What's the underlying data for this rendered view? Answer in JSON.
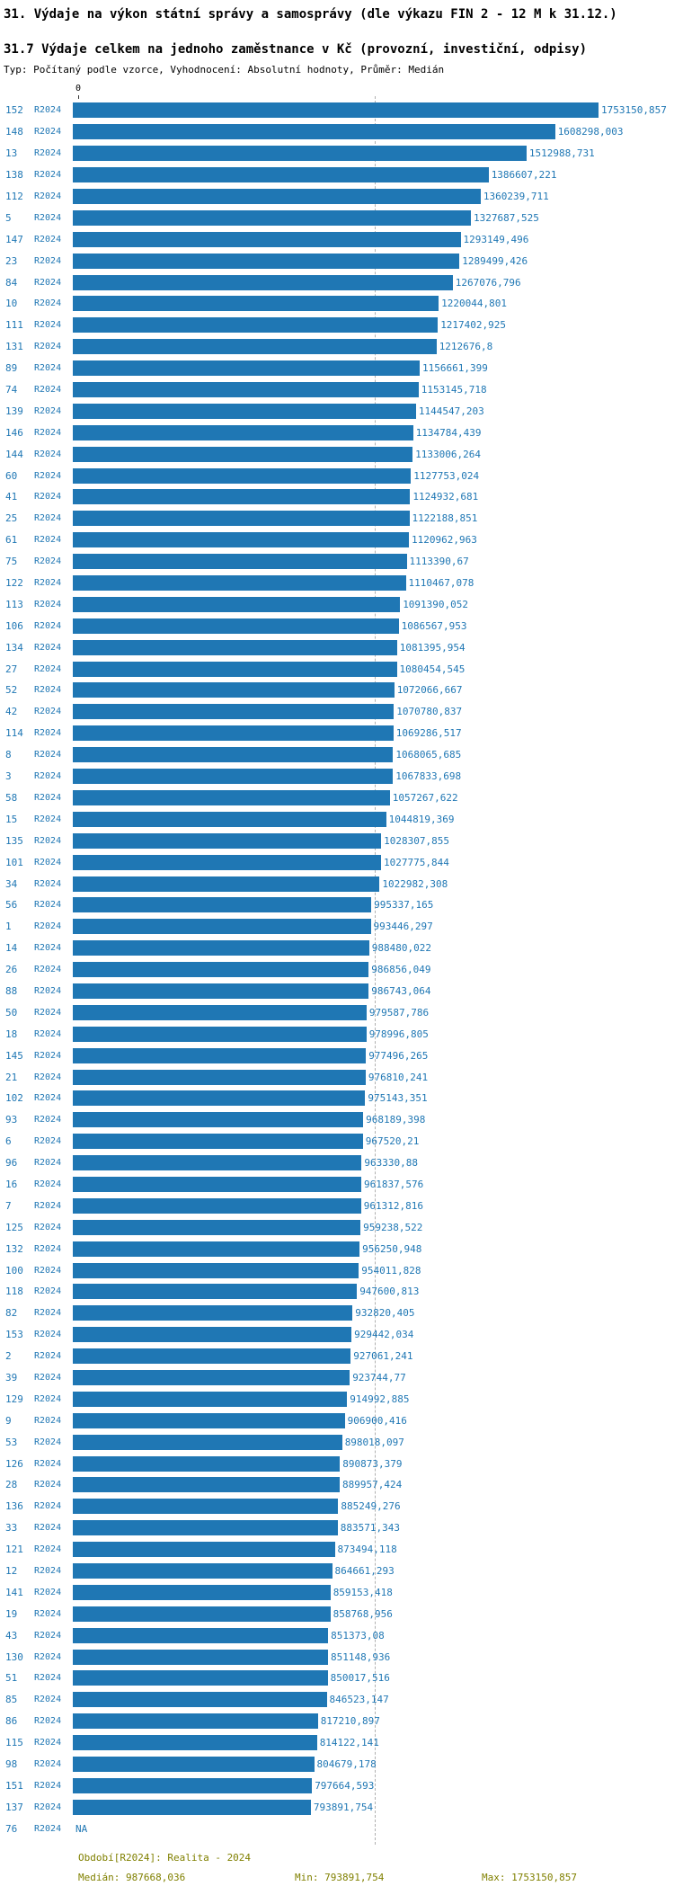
{
  "header": {
    "title1": "31. Výdaje na výkon státní správy a samosprávy (dle výkazu FIN 2 - 12 M k 31.12.)",
    "title2": "31.7 Výdaje celkem na jednoho zaměstnance v Kč (provozní, investiční, odpisy)",
    "meta": "Typ: Počítaný podle vzorce, Vyhodnocení: Absolutní hodnoty, Průměr: Medián"
  },
  "axis": {
    "zero_label": "0"
  },
  "colors": {
    "bar": "#1f77b4",
    "label": "#1f77b4",
    "footer": "#808000",
    "median_line": "#b0b0b0"
  },
  "footer": {
    "period": "Období[R2024]: Realita - 2024",
    "median": "Medián: 987668,036",
    "min": "Min: 793891,754",
    "max": "Max: 1753150,857"
  },
  "chart_data": {
    "type": "bar",
    "orientation": "horizontal",
    "series_name": "R2024",
    "xlim": [
      0,
      1753150.857
    ],
    "median": 987668.036,
    "min": 793891.754,
    "max": 1753150.857,
    "legend": "none",
    "grid": false,
    "rows": [
      {
        "id": "152",
        "period": "R2024",
        "value": 1753150.857,
        "label": "1753150,857"
      },
      {
        "id": "148",
        "period": "R2024",
        "value": 1608298.003,
        "label": "1608298,003"
      },
      {
        "id": "13",
        "period": "R2024",
        "value": 1512988.731,
        "label": "1512988,731"
      },
      {
        "id": "138",
        "period": "R2024",
        "value": 1386607.221,
        "label": "1386607,221"
      },
      {
        "id": "112",
        "period": "R2024",
        "value": 1360239.711,
        "label": "1360239,711"
      },
      {
        "id": "5",
        "period": "R2024",
        "value": 1327687.525,
        "label": "1327687,525"
      },
      {
        "id": "147",
        "period": "R2024",
        "value": 1293149.496,
        "label": "1293149,496"
      },
      {
        "id": "23",
        "period": "R2024",
        "value": 1289499.426,
        "label": "1289499,426"
      },
      {
        "id": "84",
        "period": "R2024",
        "value": 1267076.796,
        "label": "1267076,796"
      },
      {
        "id": "10",
        "period": "R2024",
        "value": 1220044.801,
        "label": "1220044,801"
      },
      {
        "id": "111",
        "period": "R2024",
        "value": 1217402.925,
        "label": "1217402,925"
      },
      {
        "id": "131",
        "period": "R2024",
        "value": 1212676.8,
        "label": "1212676,8"
      },
      {
        "id": "89",
        "period": "R2024",
        "value": 1156661.399,
        "label": "1156661,399"
      },
      {
        "id": "74",
        "period": "R2024",
        "value": 1153145.718,
        "label": "1153145,718"
      },
      {
        "id": "139",
        "period": "R2024",
        "value": 1144547.203,
        "label": "1144547,203"
      },
      {
        "id": "146",
        "period": "R2024",
        "value": 1134784.439,
        "label": "1134784,439"
      },
      {
        "id": "144",
        "period": "R2024",
        "value": 1133006.264,
        "label": "1133006,264"
      },
      {
        "id": "60",
        "period": "R2024",
        "value": 1127753.024,
        "label": "1127753,024"
      },
      {
        "id": "41",
        "period": "R2024",
        "value": 1124932.681,
        "label": "1124932,681"
      },
      {
        "id": "25",
        "period": "R2024",
        "value": 1122188.851,
        "label": "1122188,851"
      },
      {
        "id": "61",
        "period": "R2024",
        "value": 1120962.963,
        "label": "1120962,963"
      },
      {
        "id": "75",
        "period": "R2024",
        "value": 1113390.67,
        "label": "1113390,67"
      },
      {
        "id": "122",
        "period": "R2024",
        "value": 1110467.078,
        "label": "1110467,078"
      },
      {
        "id": "113",
        "period": "R2024",
        "value": 1091390.052,
        "label": "1091390,052"
      },
      {
        "id": "106",
        "period": "R2024",
        "value": 1086567.953,
        "label": "1086567,953"
      },
      {
        "id": "134",
        "period": "R2024",
        "value": 1081395.954,
        "label": "1081395,954"
      },
      {
        "id": "27",
        "period": "R2024",
        "value": 1080454.545,
        "label": "1080454,545"
      },
      {
        "id": "52",
        "period": "R2024",
        "value": 1072066.667,
        "label": "1072066,667"
      },
      {
        "id": "42",
        "period": "R2024",
        "value": 1070780.837,
        "label": "1070780,837"
      },
      {
        "id": "114",
        "period": "R2024",
        "value": 1069286.517,
        "label": "1069286,517"
      },
      {
        "id": "8",
        "period": "R2024",
        "value": 1068065.685,
        "label": "1068065,685"
      },
      {
        "id": "3",
        "period": "R2024",
        "value": 1067833.698,
        "label": "1067833,698"
      },
      {
        "id": "58",
        "period": "R2024",
        "value": 1057267.622,
        "label": "1057267,622"
      },
      {
        "id": "15",
        "period": "R2024",
        "value": 1044819.369,
        "label": "1044819,369"
      },
      {
        "id": "135",
        "period": "R2024",
        "value": 1028307.855,
        "label": "1028307,855"
      },
      {
        "id": "101",
        "period": "R2024",
        "value": 1027775.844,
        "label": "1027775,844"
      },
      {
        "id": "34",
        "period": "R2024",
        "value": 1022982.308,
        "label": "1022982,308"
      },
      {
        "id": "56",
        "period": "R2024",
        "value": 995337.165,
        "label": "995337,165"
      },
      {
        "id": "1",
        "period": "R2024",
        "value": 993446.297,
        "label": "993446,297"
      },
      {
        "id": "14",
        "period": "R2024",
        "value": 988480.022,
        "label": "988480,022"
      },
      {
        "id": "26",
        "period": "R2024",
        "value": 986856.049,
        "label": "986856,049"
      },
      {
        "id": "88",
        "period": "R2024",
        "value": 986743.064,
        "label": "986743,064"
      },
      {
        "id": "50",
        "period": "R2024",
        "value": 979587.786,
        "label": "979587,786"
      },
      {
        "id": "18",
        "period": "R2024",
        "value": 978996.805,
        "label": "978996,805"
      },
      {
        "id": "145",
        "period": "R2024",
        "value": 977496.265,
        "label": "977496,265"
      },
      {
        "id": "21",
        "period": "R2024",
        "value": 976810.241,
        "label": "976810,241"
      },
      {
        "id": "102",
        "period": "R2024",
        "value": 975143.351,
        "label": "975143,351"
      },
      {
        "id": "93",
        "period": "R2024",
        "value": 968189.398,
        "label": "968189,398"
      },
      {
        "id": "6",
        "period": "R2024",
        "value": 967520.21,
        "label": "967520,21"
      },
      {
        "id": "96",
        "period": "R2024",
        "value": 963330.88,
        "label": "963330,88"
      },
      {
        "id": "16",
        "period": "R2024",
        "value": 961837.576,
        "label": "961837,576"
      },
      {
        "id": "7",
        "period": "R2024",
        "value": 961312.816,
        "label": "961312,816"
      },
      {
        "id": "125",
        "period": "R2024",
        "value": 959238.522,
        "label": "959238,522"
      },
      {
        "id": "132",
        "period": "R2024",
        "value": 956250.948,
        "label": "956250,948"
      },
      {
        "id": "100",
        "period": "R2024",
        "value": 954011.828,
        "label": "954011,828"
      },
      {
        "id": "118",
        "period": "R2024",
        "value": 947600.813,
        "label": "947600,813"
      },
      {
        "id": "82",
        "period": "R2024",
        "value": 932820.405,
        "label": "932820,405"
      },
      {
        "id": "153",
        "period": "R2024",
        "value": 929442.034,
        "label": "929442,034"
      },
      {
        "id": "2",
        "period": "R2024",
        "value": 927061.241,
        "label": "927061,241"
      },
      {
        "id": "39",
        "period": "R2024",
        "value": 923744.77,
        "label": "923744,77"
      },
      {
        "id": "129",
        "period": "R2024",
        "value": 914992.885,
        "label": "914992,885"
      },
      {
        "id": "9",
        "period": "R2024",
        "value": 906900.416,
        "label": "906900,416"
      },
      {
        "id": "53",
        "period": "R2024",
        "value": 898018.097,
        "label": "898018,097"
      },
      {
        "id": "126",
        "period": "R2024",
        "value": 890873.379,
        "label": "890873,379"
      },
      {
        "id": "28",
        "period": "R2024",
        "value": 889957.424,
        "label": "889957,424"
      },
      {
        "id": "136",
        "period": "R2024",
        "value": 885249.276,
        "label": "885249,276"
      },
      {
        "id": "33",
        "period": "R2024",
        "value": 883571.343,
        "label": "883571,343"
      },
      {
        "id": "121",
        "period": "R2024",
        "value": 873494.118,
        "label": "873494,118"
      },
      {
        "id": "12",
        "period": "R2024",
        "value": 864661.293,
        "label": "864661,293"
      },
      {
        "id": "141",
        "period": "R2024",
        "value": 859153.418,
        "label": "859153,418"
      },
      {
        "id": "19",
        "period": "R2024",
        "value": 858768.956,
        "label": "858768,956"
      },
      {
        "id": "43",
        "period": "R2024",
        "value": 851373.08,
        "label": "851373,08"
      },
      {
        "id": "130",
        "period": "R2024",
        "value": 851148.936,
        "label": "851148,936"
      },
      {
        "id": "51",
        "period": "R2024",
        "value": 850017.516,
        "label": "850017,516"
      },
      {
        "id": "85",
        "period": "R2024",
        "value": 846523.147,
        "label": "846523,147"
      },
      {
        "id": "86",
        "period": "R2024",
        "value": 817210.897,
        "label": "817210,897"
      },
      {
        "id": "115",
        "period": "R2024",
        "value": 814122.141,
        "label": "814122,141"
      },
      {
        "id": "98",
        "period": "R2024",
        "value": 804679.178,
        "label": "804679,178"
      },
      {
        "id": "151",
        "period": "R2024",
        "value": 797664.593,
        "label": "797664,593"
      },
      {
        "id": "137",
        "period": "R2024",
        "value": 793891.754,
        "label": "793891,754"
      },
      {
        "id": "76",
        "period": "R2024",
        "value": null,
        "label": "NA"
      }
    ]
  }
}
